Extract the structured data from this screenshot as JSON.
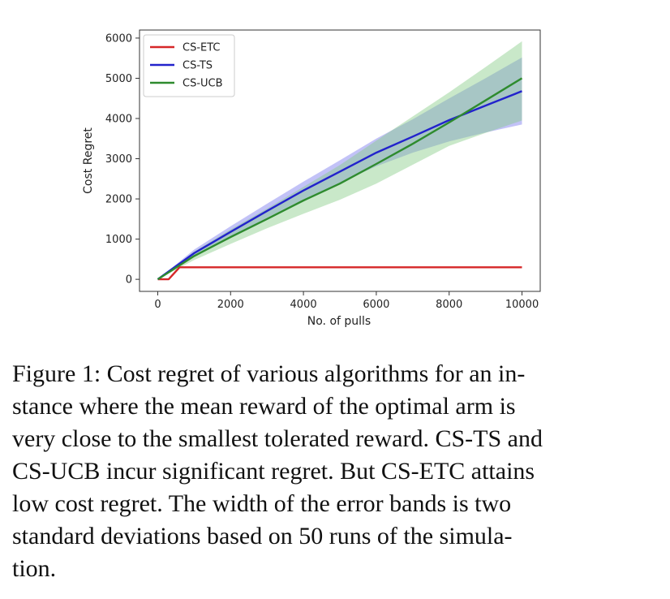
{
  "chart_data": {
    "type": "line",
    "title": "",
    "xlabel": "No. of pulls",
    "ylabel": "Cost Regret",
    "xlim": [
      -500,
      10500
    ],
    "ylim": [
      -300,
      6200
    ],
    "xticks": [
      0,
      2000,
      4000,
      6000,
      8000,
      10000
    ],
    "yticks": [
      0,
      1000,
      2000,
      3000,
      4000,
      5000,
      6000
    ],
    "grid": false,
    "legend_position": "top-left",
    "series": [
      {
        "name": "CS-ETC",
        "color": "#d62728",
        "x": [
          0,
          300,
          600,
          1000,
          2000,
          4000,
          6000,
          8000,
          10000
        ],
        "y": [
          0,
          0,
          300,
          300,
          300,
          300,
          300,
          300,
          300
        ]
      },
      {
        "name": "CS-TS",
        "color": "#2222cc",
        "band_color": "#7777ee",
        "x": [
          0,
          1000,
          2000,
          3000,
          4000,
          5000,
          6000,
          7000,
          8000,
          9000,
          10000
        ],
        "y": [
          0,
          650,
          1180,
          1700,
          2210,
          2680,
          3150,
          3550,
          3960,
          4320,
          4680
        ],
        "lower": [
          0,
          560,
          1050,
          1530,
          1990,
          2400,
          2810,
          3150,
          3430,
          3650,
          3850
        ],
        "upper": [
          0,
          740,
          1320,
          1880,
          2430,
          2960,
          3500,
          3980,
          4500,
          5000,
          5520
        ]
      },
      {
        "name": "CS-UCB",
        "color": "#2e8b2e",
        "band_color": "#88cc88",
        "x": [
          0,
          1000,
          2000,
          3000,
          4000,
          5000,
          6000,
          7000,
          8000,
          9000,
          10000
        ],
        "y": [
          0,
          580,
          1050,
          1500,
          1960,
          2380,
          2870,
          3370,
          3900,
          4450,
          5000
        ],
        "lower": [
          0,
          480,
          880,
          1270,
          1630,
          1980,
          2380,
          2850,
          3320,
          3640,
          3950
        ],
        "upper": [
          0,
          690,
          1240,
          1760,
          2300,
          2840,
          3450,
          4050,
          4650,
          5280,
          5920
        ]
      }
    ]
  },
  "caption": {
    "lines": [
      "Figure 1: Cost regret of various algorithms for an in-",
      "stance where the mean reward of the optimal arm is",
      "very close to the smallest tolerated reward. CS-TS and",
      "CS-UCB incur significant regret. But CS-ETC attains",
      "low cost regret. The width of the error bands is two",
      "standard deviations based on 50 runs of the simula-",
      "tion."
    ]
  }
}
